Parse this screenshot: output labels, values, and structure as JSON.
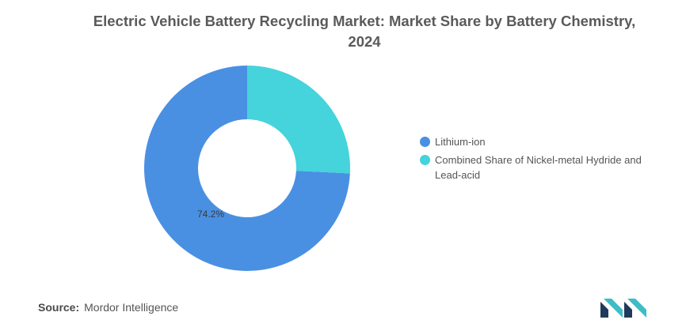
{
  "chart_data": {
    "type": "donut",
    "title": "Electric Vehicle Battery Recycling Market: Market Share by Battery Chemistry, 2024",
    "series": [
      {
        "name": "Lithium-ion",
        "value": 74.2,
        "label": "74.2%",
        "color": "#4a90e2"
      },
      {
        "name": "Combined Share of Nickel-metal Hydride and Lead-acid",
        "value": 25.8,
        "label": "",
        "color": "#45d3dc"
      }
    ],
    "legend_position": "right"
  },
  "source": {
    "label": "Source:",
    "text": "Mordor Intelligence"
  },
  "colors": {
    "title": "#5a5a5a",
    "logo_dark": "#1f3a5a",
    "logo_teal": "#3fbcc6"
  }
}
